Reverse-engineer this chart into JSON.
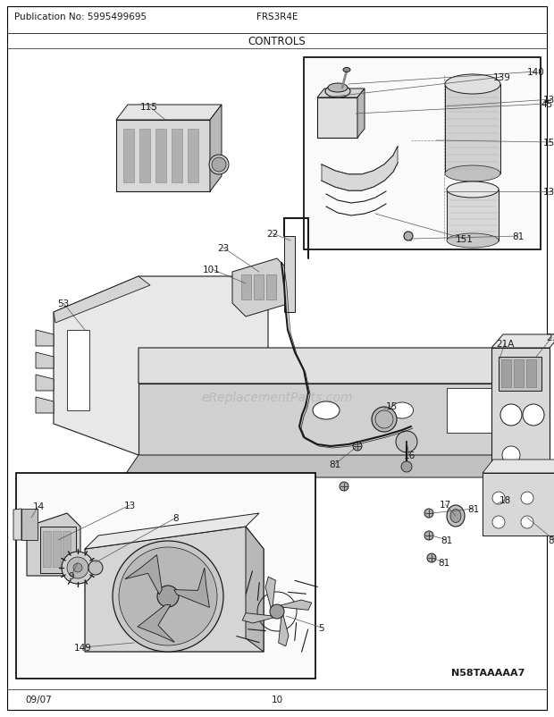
{
  "title": "CONTROLS",
  "pub_no": "Publication No: 5995499695",
  "model": "FRS3R4E",
  "date": "09/07",
  "page": "10",
  "diagram_id": "N58TAAAAA7",
  "bg_color": "#ffffff",
  "border_color": "#000000",
  "line_color": "#1a1a1a",
  "text_color": "#1a1a1a",
  "gray_fill": "#c8c8c8",
  "light_gray": "#e0e0e0",
  "watermark": "eReplacementParts.com"
}
